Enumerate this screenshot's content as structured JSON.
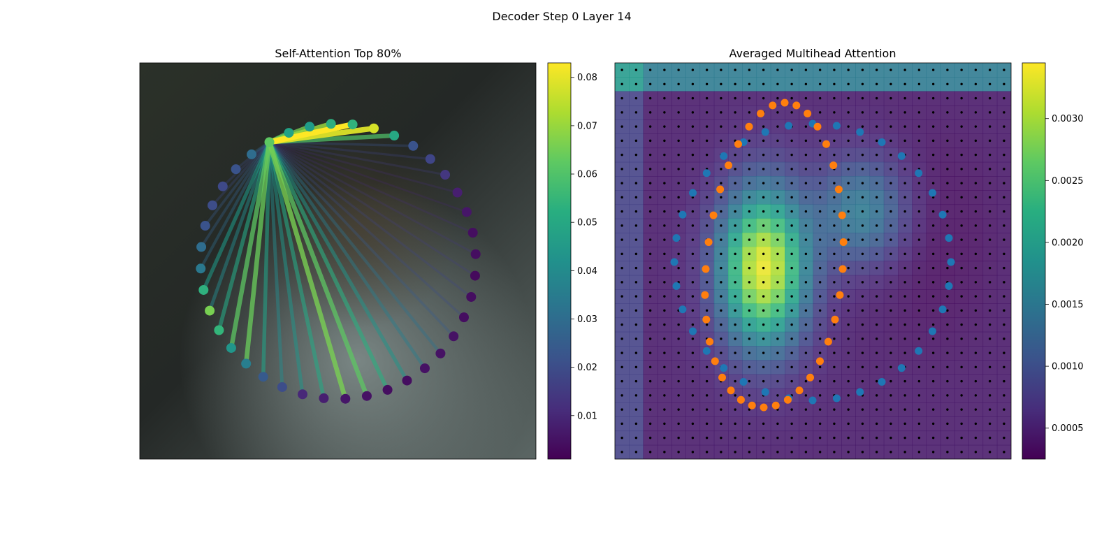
{
  "figure": {
    "suptitle": "Decoder Step 0 Layer 14"
  },
  "chart_data": [
    {
      "type": "network",
      "title": "Self-Attention Top 80%",
      "node_count": 40,
      "source_node": 0,
      "node_values": [
        0.062,
        0.048,
        0.046,
        0.052,
        0.054,
        0.078,
        0.05,
        0.022,
        0.018,
        0.014,
        0.008,
        0.006,
        0.004,
        0.004,
        0.003,
        0.004,
        0.004,
        0.005,
        0.005,
        0.005,
        0.004,
        0.004,
        0.005,
        0.006,
        0.008,
        0.01,
        0.02,
        0.024,
        0.036,
        0.044,
        0.055,
        0.066,
        0.053,
        0.034,
        0.03,
        0.022,
        0.02,
        0.019,
        0.022,
        0.03
      ],
      "edge_weights": [
        0.062,
        0.066,
        0.07,
        0.083,
        0.079,
        0.06,
        0.022,
        0.018,
        0.016,
        0.012,
        0.01,
        0.012,
        0.014,
        0.016,
        0.018,
        0.02,
        0.024,
        0.032,
        0.036,
        0.044,
        0.052,
        0.062,
        0.066,
        0.05,
        0.044,
        0.04,
        0.048,
        0.064,
        0.062,
        0.05,
        0.04,
        0.046,
        0.03,
        0.026,
        0.024,
        0.02,
        0.018,
        0.02,
        0.028
      ],
      "colorbar": {
        "ticks": [
          "0.01",
          "0.02",
          "0.03",
          "0.04",
          "0.05",
          "0.06",
          "0.07",
          "0.08"
        ],
        "tick_values": [
          0.01,
          0.02,
          0.03,
          0.04,
          0.05,
          0.06,
          0.07,
          0.08
        ],
        "range": [
          0.001,
          0.083
        ],
        "cmap": "viridis"
      }
    },
    {
      "type": "heatmap",
      "title": "Averaged Multihead Attention",
      "grid": [
        28,
        28
      ],
      "peak_cells": [
        [
          10,
          14
        ],
        [
          17,
          10
        ]
      ],
      "blue_points": 36,
      "orange_points": 36,
      "colorbar": {
        "ticks": [
          "0.0005",
          "0.0010",
          "0.0015",
          "0.0020",
          "0.0025",
          "0.0030"
        ],
        "tick_values": [
          0.0005,
          0.001,
          0.0015,
          0.002,
          0.0025,
          0.003
        ],
        "range": [
          0.00025,
          0.00345
        ],
        "cmap": "viridis"
      },
      "colors": {
        "blue": "#1f77b4",
        "orange": "#ff7f0e",
        "grid_dot": "#000000"
      }
    }
  ]
}
